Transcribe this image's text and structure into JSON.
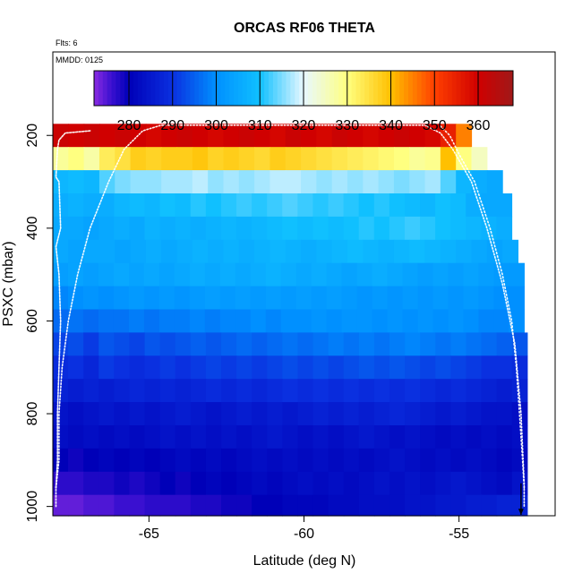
{
  "chart_data": {
    "type": "heatmap",
    "title": "ORCAS RF06 THETA",
    "note_flts": "Flts: 6",
    "note_mmdd": "MMDD: 0125",
    "xlabel": "Latitude (deg N)",
    "ylabel": "PSXC (mbar)",
    "xlim": [
      -68.1,
      -51.9
    ],
    "ylim": [
      1020,
      20
    ],
    "x_ticks": [
      -65,
      -60,
      -55
    ],
    "y_ticks": [
      200,
      400,
      600,
      800,
      1000
    ],
    "colorbar": {
      "range": [
        272,
        368
      ],
      "ticks": [
        280,
        290,
        300,
        310,
        320,
        330,
        340,
        350,
        360
      ],
      "stops": [
        [
          272,
          "#8a2be2"
        ],
        [
          276,
          "#3a10d0"
        ],
        [
          280,
          "#0000b8"
        ],
        [
          290,
          "#0a30e0"
        ],
        [
          300,
          "#0090ff"
        ],
        [
          310,
          "#10c0ff"
        ],
        [
          320,
          "#e8f8ff"
        ],
        [
          330,
          "#ffff80"
        ],
        [
          340,
          "#ffc000"
        ],
        [
          350,
          "#ff4000"
        ],
        [
          360,
          "#d00000"
        ],
        [
          368,
          "#a01818"
        ]
      ]
    },
    "x_bins": [
      -68.1,
      -67.6,
      -67.1,
      -66.6,
      -66.1,
      -65.6,
      -65.1,
      -64.6,
      -64.1,
      -63.6,
      -63.1,
      -62.6,
      -62.1,
      -61.6,
      -61.1,
      -60.6,
      -60.1,
      -59.6,
      -59.1,
      -58.6,
      -58.1,
      -57.6,
      -57.1,
      -56.6,
      -56.1,
      -55.6,
      -55.1,
      -54.6,
      -54.1,
      -53.6,
      -53.1,
      -52.8
    ],
    "pressure_bins": [
      [
        175,
        225,
        1.0
      ],
      [
        225,
        275,
        2.0
      ],
      [
        275,
        325,
        1.5
      ],
      [
        325,
        375,
        1.5
      ],
      [
        375,
        425,
        1.6
      ],
      [
        425,
        475,
        1.4
      ],
      [
        475,
        525,
        1.3
      ],
      [
        525,
        575,
        1.3
      ],
      [
        575,
        625,
        1.1
      ],
      [
        625,
        675,
        1.0
      ],
      [
        675,
        725,
        0.9
      ],
      [
        725,
        775,
        0.9
      ],
      [
        775,
        825,
        0.8
      ],
      [
        825,
        875,
        0.6
      ],
      [
        875,
        925,
        0.5
      ],
      [
        925,
        975,
        0.4
      ],
      [
        975,
        1020,
        0.3
      ]
    ],
    "rows": [
      {
        "p": 200,
        "lo": -68.1,
        "hi": -54.6,
        "theta": [
          361,
          360,
          361,
          360,
          361,
          360,
          359,
          360,
          361,
          360,
          359,
          360,
          361,
          360,
          359,
          361,
          360,
          359,
          361,
          360,
          359,
          360,
          361,
          360,
          359,
          355,
          345
        ]
      },
      {
        "p": 250,
        "lo": -68.1,
        "hi": -54.1,
        "theta": [
          328,
          330,
          327,
          333,
          335,
          338,
          337,
          338,
          338,
          339,
          337,
          338,
          337,
          336,
          338,
          337,
          336,
          335,
          334,
          333,
          332,
          331,
          330,
          328,
          329,
          340,
          330,
          325
        ]
      },
      {
        "p": 300,
        "lo": -68.1,
        "hi": -53.6,
        "theta": [
          308,
          309,
          308,
          313,
          315,
          316,
          316,
          317,
          317,
          318,
          316,
          317,
          316,
          317,
          318,
          318,
          317,
          316,
          317,
          316,
          317,
          316,
          315,
          316,
          317,
          313,
          308,
          306,
          305
        ]
      },
      {
        "p": 350,
        "lo": -68.1,
        "hi": -53.3,
        "theta": [
          306,
          307,
          306,
          306,
          308,
          309,
          308,
          310,
          309,
          311,
          310,
          311,
          312,
          311,
          312,
          313,
          312,
          311,
          312,
          311,
          310,
          311,
          310,
          309,
          308,
          310,
          309,
          306,
          305,
          305
        ]
      },
      {
        "p": 400,
        "lo": -68.1,
        "hi": -53.3,
        "theta": [
          305,
          305,
          304,
          305,
          306,
          305,
          307,
          306,
          307,
          306,
          307,
          308,
          307,
          308,
          309,
          310,
          309,
          310,
          309,
          310,
          311,
          310,
          311,
          312,
          311,
          310,
          309,
          308,
          307,
          306
        ]
      },
      {
        "p": 450,
        "lo": -68.1,
        "hi": -53.1,
        "theta": [
          305,
          304,
          305,
          305,
          304,
          305,
          306,
          305,
          306,
          307,
          306,
          307,
          306,
          307,
          308,
          307,
          306,
          307,
          308,
          309,
          308,
          307,
          308,
          309,
          308,
          307,
          306,
          305,
          304,
          305
        ]
      },
      {
        "p": 500,
        "lo": -68.1,
        "hi": -52.9,
        "theta": [
          303,
          304,
          303,
          304,
          305,
          304,
          305,
          304,
          305,
          306,
          305,
          306,
          305,
          306,
          307,
          306,
          305,
          306,
          305,
          304,
          305,
          306,
          305,
          304,
          303,
          304,
          303,
          304,
          303,
          302,
          302
        ]
      },
      {
        "p": 550,
        "lo": -68.1,
        "hi": -52.9,
        "theta": [
          299,
          300,
          301,
          300,
          301,
          302,
          301,
          302,
          301,
          302,
          303,
          302,
          303,
          302,
          303,
          302,
          303,
          302,
          303,
          302,
          301,
          302,
          301,
          302,
          301,
          302,
          301,
          302,
          301,
          300,
          300
        ]
      },
      {
        "p": 600,
        "lo": -68.1,
        "hi": -52.9,
        "theta": [
          296,
          297,
          296,
          297,
          297,
          298,
          297,
          298,
          298,
          299,
          298,
          299,
          299,
          300,
          299,
          300,
          300,
          301,
          300,
          301,
          301,
          300,
          301,
          300,
          301,
          300,
          301,
          300,
          299,
          299,
          300
        ]
      },
      {
        "p": 650,
        "lo": -68.1,
        "hi": -52.8,
        "theta": [
          292,
          293,
          291,
          294,
          293,
          292,
          294,
          293,
          294,
          295,
          294,
          295,
          296,
          295,
          296,
          297,
          296,
          297,
          298,
          297,
          298,
          297,
          298,
          299,
          298,
          297,
          298,
          297,
          296,
          295,
          294
        ]
      },
      {
        "p": 700,
        "lo": -68.1,
        "hi": -52.8,
        "theta": [
          289,
          290,
          288,
          291,
          290,
          289,
          290,
          291,
          290,
          291,
          292,
          291,
          292,
          291,
          292,
          293,
          292,
          293,
          292,
          293,
          294,
          293,
          294,
          293,
          292,
          293,
          292,
          291,
          290,
          290,
          289
        ]
      },
      {
        "p": 750,
        "lo": -68.1,
        "hi": -52.8,
        "theta": [
          287,
          286,
          287,
          286,
          287,
          288,
          287,
          288,
          287,
          288,
          289,
          288,
          289,
          288,
          289,
          290,
          289,
          290,
          289,
          290,
          289,
          290,
          289,
          290,
          289,
          288,
          289,
          288,
          287,
          286,
          287
        ]
      },
      {
        "p": 800,
        "lo": -68.1,
        "hi": -52.8,
        "theta": [
          284,
          283,
          284,
          285,
          284,
          285,
          284,
          285,
          286,
          285,
          284,
          285,
          286,
          285,
          286,
          285,
          286,
          287,
          286,
          287,
          286,
          287,
          288,
          287,
          286,
          285,
          286,
          285,
          284,
          284,
          283
        ]
      },
      {
        "p": 850,
        "lo": -68.1,
        "hi": -52.8,
        "theta": [
          283,
          282,
          283,
          282,
          283,
          282,
          283,
          284,
          283,
          284,
          283,
          284,
          283,
          284,
          285,
          284,
          283,
          284,
          283,
          284,
          285,
          284,
          283,
          284,
          283,
          282,
          283,
          282,
          283,
          282,
          283
        ]
      },
      {
        "p": 900,
        "lo": -68.1,
        "hi": -52.8,
        "theta": [
          280,
          279,
          280,
          281,
          280,
          281,
          280,
          281,
          282,
          281,
          282,
          281,
          282,
          283,
          282,
          283,
          282,
          283,
          282,
          283,
          282,
          283,
          284,
          283,
          282,
          283,
          282,
          283,
          282,
          281,
          282
        ]
      },
      {
        "p": 950,
        "lo": -68.1,
        "hi": -52.8,
        "theta": [
          277,
          277,
          278,
          278,
          279,
          278,
          279,
          280,
          279,
          280,
          281,
          280,
          281,
          282,
          281,
          282,
          283,
          282,
          283,
          282,
          283,
          284,
          283,
          284,
          283,
          284,
          285,
          284,
          283,
          282,
          284
        ]
      },
      {
        "p": 1000,
        "lo": -68.1,
        "hi": -52.8,
        "theta": [
          274,
          274,
          275,
          275,
          276,
          276,
          277,
          277,
          277,
          278,
          278,
          279,
          279,
          280,
          280,
          281,
          281,
          281,
          282,
          282,
          283,
          283,
          283,
          284,
          284,
          285,
          285,
          286,
          286,
          287,
          287
        ]
      }
    ],
    "flight_track": [
      [
        -68.0,
        1000
      ],
      [
        -68.0,
        960
      ],
      [
        -67.9,
        900
      ],
      [
        -67.9,
        800
      ],
      [
        -67.8,
        700
      ],
      [
        -67.6,
        600
      ],
      [
        -67.3,
        500
      ],
      [
        -66.9,
        400
      ],
      [
        -66.3,
        300
      ],
      [
        -65.8,
        230
      ],
      [
        -65.2,
        190
      ],
      [
        -64.6,
        178
      ],
      [
        -60.0,
        178
      ],
      [
        -56.1,
        178
      ],
      [
        -55.6,
        195
      ],
      [
        -55.2,
        230
      ],
      [
        -54.6,
        300
      ],
      [
        -54.1,
        400
      ],
      [
        -53.6,
        520
      ],
      [
        -53.2,
        650
      ],
      [
        -53.0,
        800
      ],
      [
        -52.9,
        950
      ],
      [
        -52.9,
        1000
      ]
    ],
    "flight_track_left": [
      [
        -68.0,
        960
      ],
      [
        -67.95,
        900
      ],
      [
        -67.95,
        800
      ],
      [
        -67.9,
        700
      ],
      [
        -67.85,
        600
      ],
      [
        -67.9,
        500
      ],
      [
        -68.0,
        440
      ],
      [
        -67.85,
        400
      ],
      [
        -67.9,
        300
      ],
      [
        -68.0,
        290
      ],
      [
        -67.95,
        230
      ],
      [
        -67.9,
        210
      ],
      [
        -67.7,
        195
      ],
      [
        -66.9,
        190
      ]
    ],
    "flight_track_right": [
      [
        -55.6,
        180
      ],
      [
        -55.3,
        200
      ],
      [
        -55.0,
        240
      ],
      [
        -54.5,
        300
      ],
      [
        -54.0,
        400
      ],
      [
        -53.6,
        500
      ],
      [
        -53.3,
        600
      ],
      [
        -53.15,
        700
      ],
      [
        -53.05,
        800
      ],
      [
        -52.95,
        900
      ],
      [
        -52.9,
        960
      ]
    ]
  }
}
